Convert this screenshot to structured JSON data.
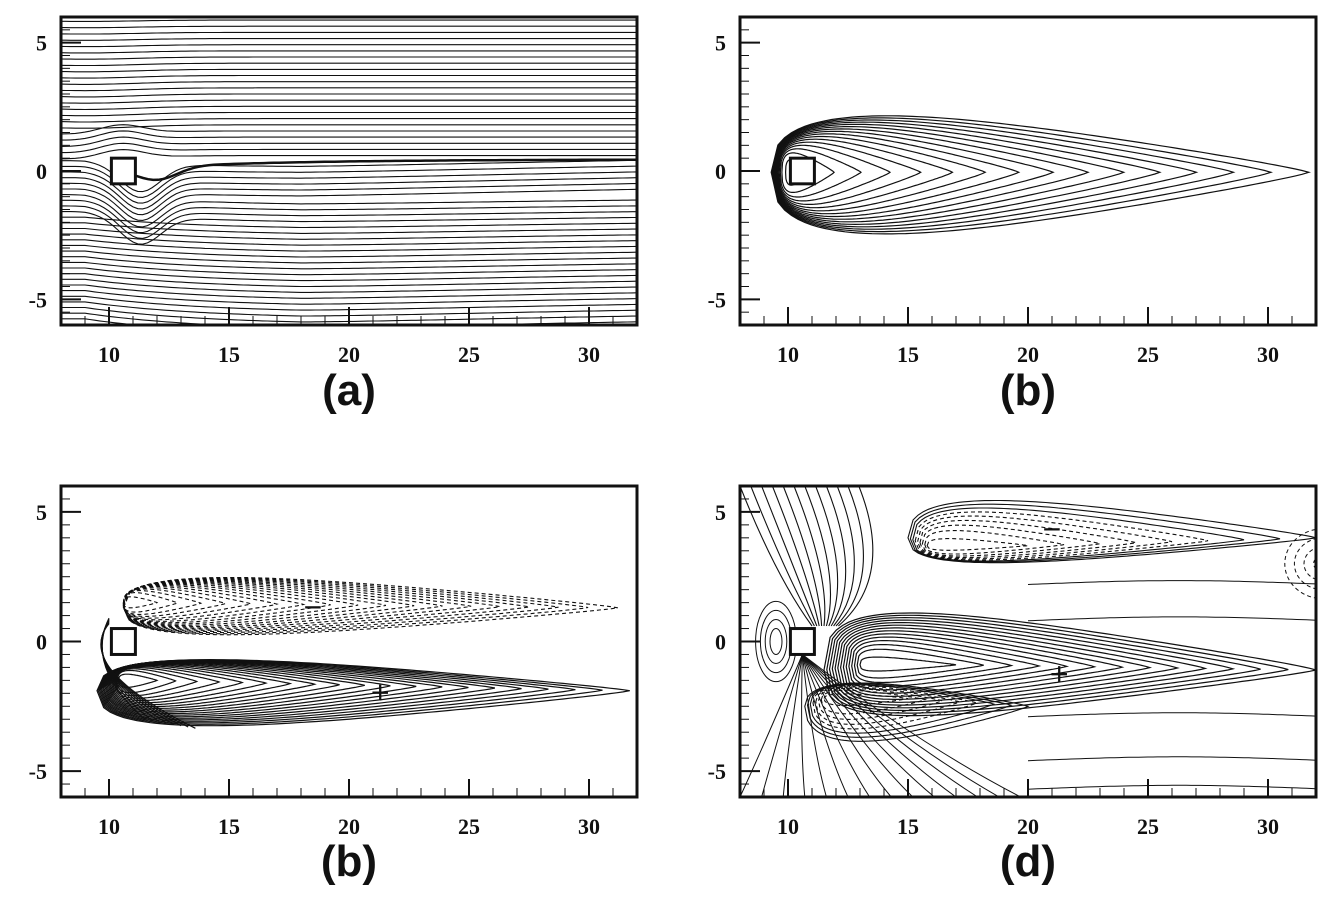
{
  "chart_data": [
    {
      "type": "contour",
      "panel_label": "(a)",
      "xlim": [
        8,
        32
      ],
      "ylim": [
        -6,
        6
      ],
      "x_major_ticks": [
        10,
        15,
        20,
        25,
        30
      ],
      "y_major_ticks": [
        -5,
        0,
        5
      ],
      "x_tick_labels": [
        "10",
        "15",
        "20",
        "25",
        "30"
      ],
      "y_tick_labels": [
        "-5",
        "0",
        "5"
      ],
      "obstacle": {
        "shape": "square",
        "center": [
          10.6,
          0
        ],
        "side": 1
      },
      "pattern": "streamlines",
      "line_styles": [
        "solid"
      ]
    },
    {
      "type": "contour",
      "panel_label": "(b)",
      "xlim": [
        8,
        32
      ],
      "ylim": [
        -6,
        6
      ],
      "x_major_ticks": [
        10,
        15,
        20,
        25,
        30
      ],
      "y_major_ticks": [
        -5,
        0,
        5
      ],
      "x_tick_labels": [
        "10",
        "15",
        "20",
        "25",
        "30"
      ],
      "y_tick_labels": [
        "-5",
        "0",
        "5"
      ],
      "obstacle": {
        "shape": "square",
        "center": [
          10.6,
          0
        ],
        "side": 1
      },
      "pattern": "nested closed contours, single lobe",
      "outer_contour_extent_x": 31.7,
      "line_styles": [
        "solid"
      ]
    },
    {
      "type": "contour",
      "panel_label": "(b)",
      "xlim": [
        8,
        32
      ],
      "ylim": [
        -6,
        6
      ],
      "x_major_ticks": [
        10,
        15,
        20,
        25,
        30
      ],
      "y_major_ticks": [
        -5,
        0,
        5
      ],
      "x_tick_labels": [
        "10",
        "15",
        "20",
        "25",
        "30"
      ],
      "y_tick_labels": [
        "-5",
        "0",
        "5"
      ],
      "obstacle": {
        "shape": "square",
        "center": [
          10.6,
          0
        ],
        "side": 1
      },
      "pattern": "two lobes: dashed (negative) above, solid (positive) below",
      "sign_markers": [
        {
          "symbol": "−",
          "x": 18.5,
          "y": 1.3
        },
        {
          "symbol": "+",
          "x": 21.3,
          "y": -2.0
        }
      ],
      "line_styles": [
        "dashed",
        "solid"
      ]
    },
    {
      "type": "contour",
      "panel_label": "(d)",
      "xlim": [
        8,
        32
      ],
      "ylim": [
        -6,
        6
      ],
      "x_major_ticks": [
        10,
        15,
        20,
        25,
        30
      ],
      "y_major_ticks": [
        -5,
        0,
        5
      ],
      "x_tick_labels": [
        "10",
        "15",
        "20",
        "25",
        "30"
      ],
      "y_tick_labels": [
        "-5",
        "0",
        "5"
      ],
      "obstacle": {
        "shape": "square",
        "center": [
          10.6,
          0
        ],
        "side": 1
      },
      "pattern": "multi-lobe field, dashed negative and solid positive",
      "sign_markers": [
        {
          "symbol": "−",
          "x": 21.0,
          "y": 4.3
        },
        {
          "symbol": "+",
          "x": 21.3,
          "y": -1.3
        }
      ],
      "line_styles": [
        "dashed",
        "solid"
      ]
    }
  ]
}
